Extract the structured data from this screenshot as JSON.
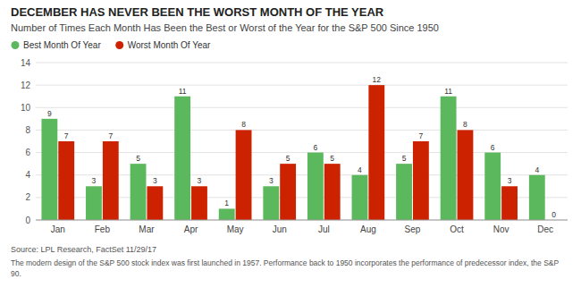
{
  "chart_data": {
    "type": "bar",
    "title": "DECEMBER HAS NEVER BEEN THE WORST MONTH OF THE YEAR",
    "subtitle": "Number of Times Each Month Has Been the Best or Worst of the Year for the S&P 500 Since 1950",
    "categories": [
      "Jan",
      "Feb",
      "Mar",
      "Apr",
      "May",
      "Jun",
      "Jul",
      "Aug",
      "Sep",
      "Oct",
      "Nov",
      "Dec"
    ],
    "series": [
      {
        "name": "Best Month Of Year",
        "color": "#5cb85c",
        "values": [
          9,
          3,
          5,
          11,
          1,
          3,
          6,
          4,
          5,
          11,
          6,
          4
        ]
      },
      {
        "name": "Worst Month Of Year",
        "color": "#cc2200",
        "values": [
          7,
          7,
          3,
          3,
          8,
          5,
          5,
          12,
          7,
          8,
          3,
          0
        ]
      }
    ],
    "ylim": [
      0,
      14
    ],
    "yticks": [
      0,
      2,
      4,
      6,
      8,
      10,
      12,
      14
    ],
    "grid": true,
    "legend": "upper left",
    "data_labels": true,
    "annotations": [
      "Source: LPL Research, FactSet  11/29/17",
      "The modern design of the S&P 500 stock index was first launched in 1957. Performance back to 1950 incorporates the performance of predecessor index, the S&P 90."
    ]
  }
}
